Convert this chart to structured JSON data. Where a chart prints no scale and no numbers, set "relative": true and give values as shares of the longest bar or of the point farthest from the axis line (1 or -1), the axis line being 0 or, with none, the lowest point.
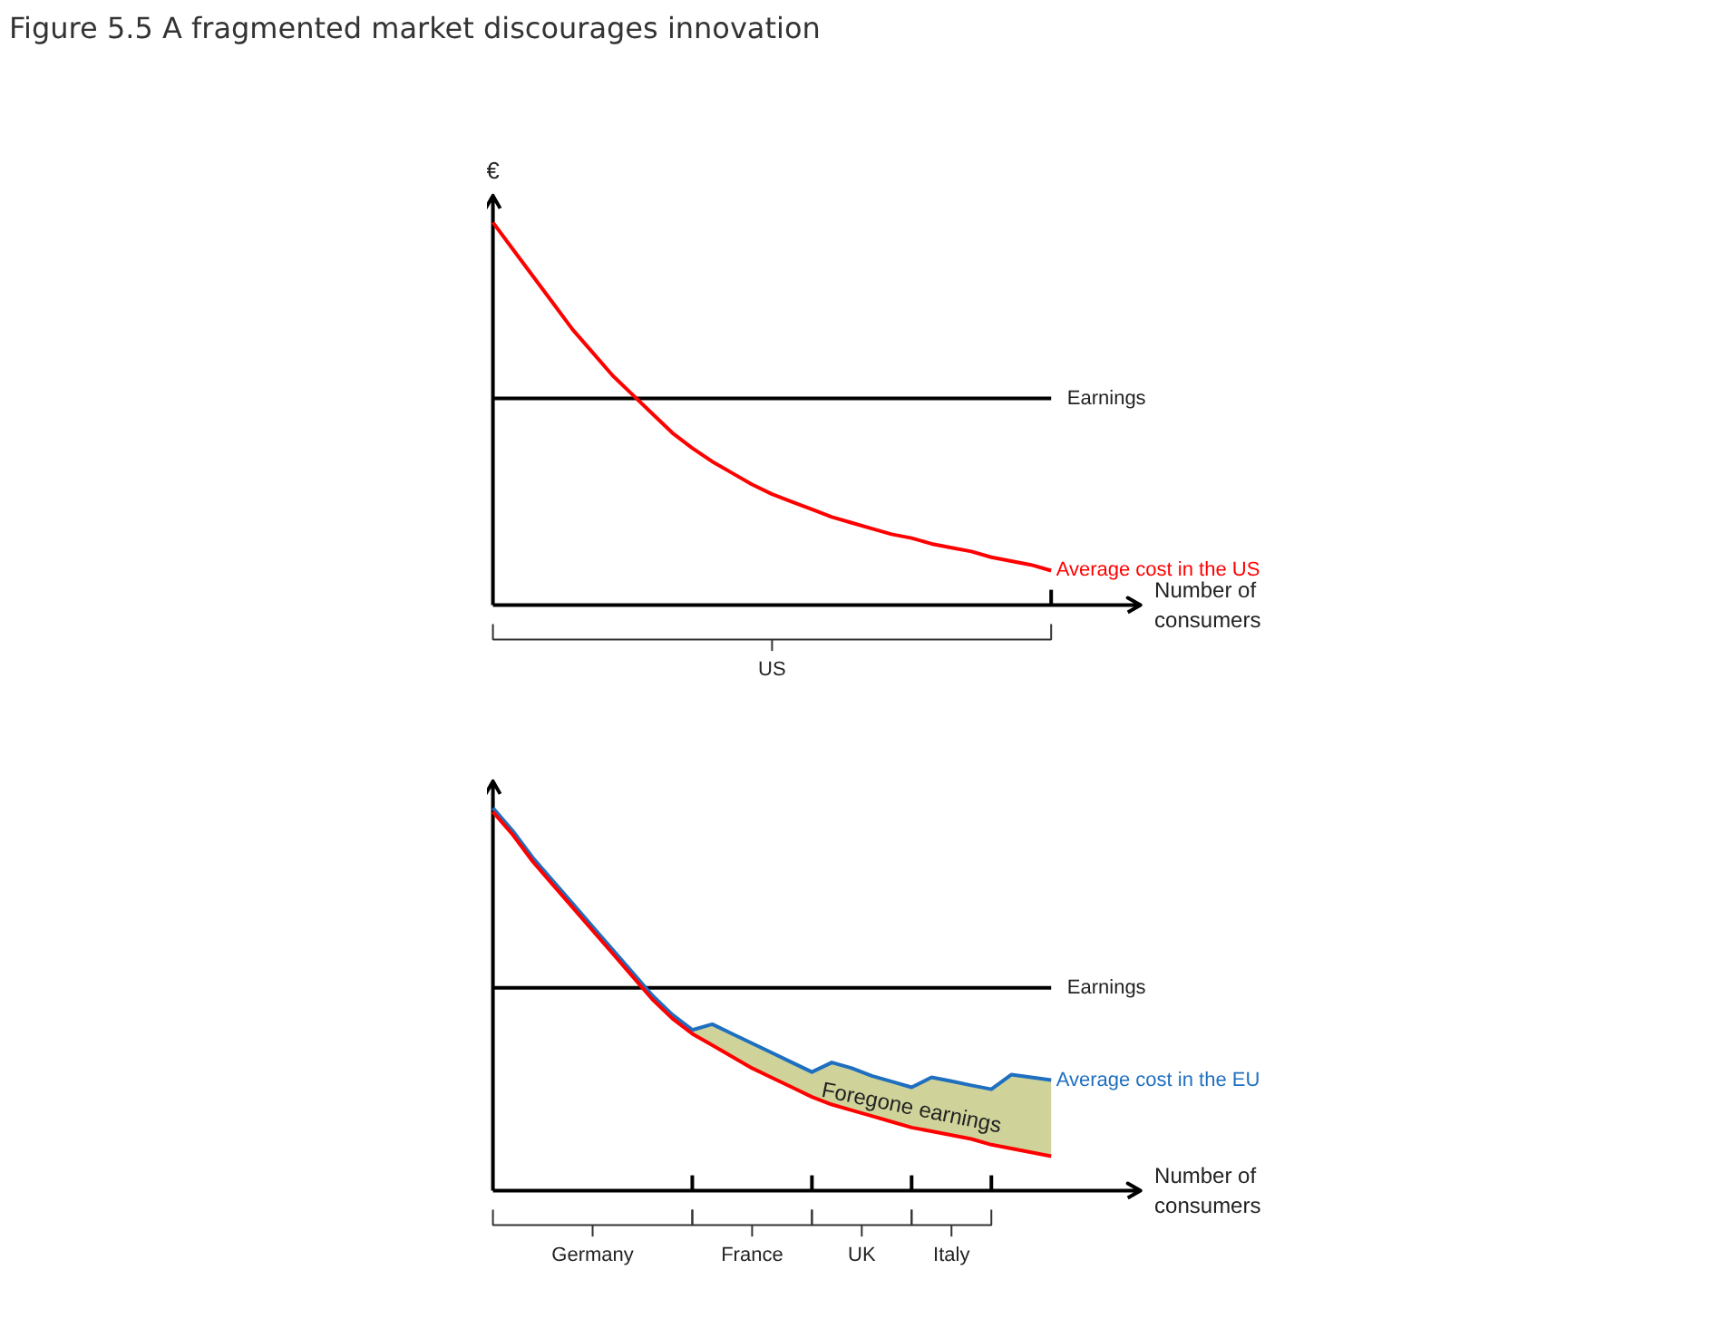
{
  "chart_data": [
    {
      "type": "line",
      "title": "Figure 5.5 A fragmented market discourages innovation",
      "relative": true,
      "ylabel": "€",
      "xlabel": "Number of consumers",
      "categories": [
        null,
        null,
        null,
        null,
        null,
        null,
        null,
        null,
        null,
        null,
        null,
        null,
        null,
        null,
        null,
        null,
        null,
        null,
        null,
        null,
        null,
        null,
        null,
        null,
        null,
        null,
        null,
        null,
        null
      ],
      "series": [
        {
          "name": "Average cost in the US",
          "color": "#ff0000",
          "values": [
            1.0,
            0.93,
            0.86,
            0.79,
            0.72,
            0.66,
            0.6,
            0.55,
            0.5,
            0.45,
            0.41,
            0.375,
            0.345,
            0.315,
            0.29,
            0.27,
            0.25,
            0.23,
            0.215,
            0.2,
            0.185,
            0.175,
            0.16,
            0.15,
            0.14,
            0.125,
            0.115,
            0.105,
            0.09
          ]
        }
      ],
      "ref_lines": [
        {
          "axis": "y",
          "value": 0.54,
          "label": "Earnings",
          "color": "#000000"
        }
      ],
      "annotations": [
        "US"
      ]
    },
    {
      "type": "line",
      "relative": true,
      "xlabel": "Number of consumers",
      "categories": [
        null,
        null,
        null,
        null,
        null,
        null,
        null,
        null,
        null,
        null,
        null,
        null,
        null,
        null,
        null,
        null,
        null,
        null,
        null,
        null,
        null,
        null,
        null,
        null,
        null,
        null,
        null,
        null,
        null
      ],
      "series": [
        {
          "name": "Average cost in the EU",
          "color": "#1f6fc0",
          "values": [
            1.0,
            0.94,
            0.87,
            0.81,
            0.75,
            0.69,
            0.63,
            0.57,
            0.51,
            0.46,
            0.42,
            0.435,
            0.41,
            0.385,
            0.36,
            0.335,
            0.31,
            0.335,
            0.32,
            0.3,
            0.285,
            0.27,
            0.296,
            0.286,
            0.275,
            0.265,
            0.303,
            0.296,
            0.289
          ]
        },
        {
          "color": "#ff0000",
          "values": [
            0.99,
            0.93,
            0.86,
            0.8,
            0.74,
            0.68,
            0.62,
            0.56,
            0.5,
            0.45,
            0.41,
            0.38,
            0.35,
            0.32,
            0.295,
            0.27,
            0.245,
            0.225,
            0.21,
            0.195,
            0.18,
            0.165,
            0.155,
            0.145,
            0.135,
            0.12,
            0.11,
            0.1,
            0.09
          ]
        },
        {
          "type": "area",
          "color": "#cfd39a",
          "values": [
            null,
            null,
            null,
            null,
            null,
            null,
            null,
            null,
            null,
            null,
            0.42,
            0.435,
            0.41,
            0.385,
            0.36,
            0.335,
            0.31,
            0.335,
            0.32,
            0.3,
            0.285,
            0.27,
            0.296,
            0.286,
            0.275,
            0.265,
            0.303,
            0.296,
            0.289
          ]
        }
      ],
      "ref_lines": [
        {
          "axis": "y",
          "value": 0.53,
          "label": "Earnings",
          "color": "#000000"
        }
      ],
      "annotations": [
        "Germany",
        "France",
        "UK",
        "Italy",
        "Foregone earnings"
      ]
    }
  ]
}
